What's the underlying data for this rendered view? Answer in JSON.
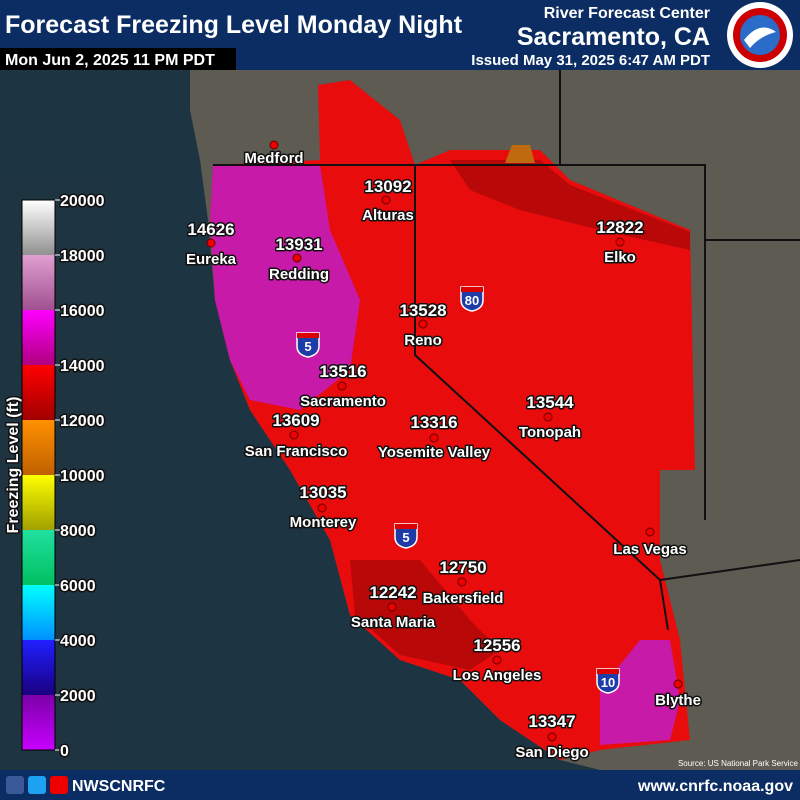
{
  "header": {
    "title": "Forecast Freezing Level Monday Night",
    "valid_time": "Mon Jun 2, 2025 11 PM PDT",
    "office_line1": "River Forecast Center",
    "office_line2": "Sacramento, CA",
    "issued": "Issued May 31, 2025 6:47 AM PDT"
  },
  "legend": {
    "title": "Freezing Level (ft)",
    "ticks": [
      20000,
      18000,
      16000,
      14000,
      12000,
      10000,
      8000,
      6000,
      4000,
      2000,
      0
    ]
  },
  "cities": [
    {
      "name": "Medford"
    },
    {
      "name": "Eureka",
      "value": 14626
    },
    {
      "name": "Redding",
      "value": 13931
    },
    {
      "name": "Alturas",
      "value": 13092
    },
    {
      "name": "Elko",
      "value": 12822
    },
    {
      "name": "Reno",
      "value": 13528
    },
    {
      "name": "Sacramento",
      "value": 13516
    },
    {
      "name": "San Francisco",
      "value": 13609
    },
    {
      "name": "Yosemite Valley",
      "value": 13316
    },
    {
      "name": "Tonopah",
      "value": 13544
    },
    {
      "name": "Monterey",
      "value": 13035
    },
    {
      "name": "Las Vegas"
    },
    {
      "name": "Bakersfield",
      "value": 12750
    },
    {
      "name": "Santa Maria",
      "value": 12242
    },
    {
      "name": "Los Angeles",
      "value": 12556
    },
    {
      "name": "Blythe"
    },
    {
      "name": "San Diego",
      "value": 13347
    }
  ],
  "interstates": [
    "80",
    "5",
    "5",
    "10"
  ],
  "source": "Source: US National Park Service",
  "footer": {
    "handle": "NWSCNRFC",
    "url": "www.cnrfc.noaa.gov"
  }
}
